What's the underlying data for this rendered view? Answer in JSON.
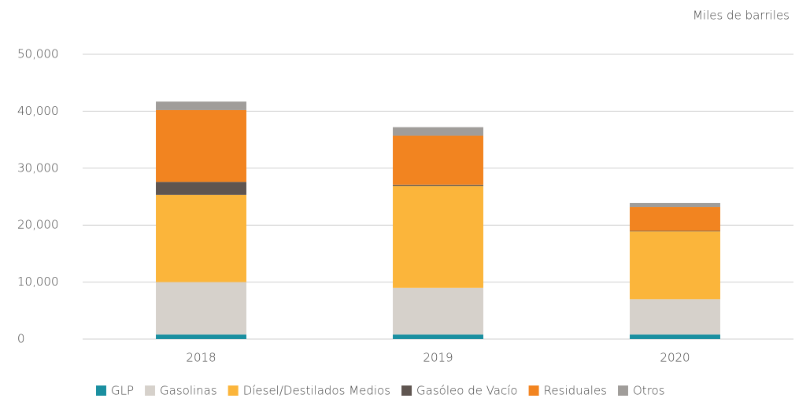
{
  "chart_data": {
    "type": "stacked_bar",
    "unit_label": "Miles de barriles",
    "categories": [
      "2018",
      "2019",
      "2020"
    ],
    "series": [
      {
        "name": "GLP",
        "color": "#1a8fa0",
        "values": [
          800,
          800,
          800
        ]
      },
      {
        "name": "Gasolinas",
        "color": "#d6d1cb",
        "values": [
          9200,
          8200,
          6200
        ]
      },
      {
        "name": "Díesel/Destilados Medios",
        "color": "#fbb53b",
        "values": [
          15300,
          17900,
          11900
        ]
      },
      {
        "name": "Gasóleo de Vacío",
        "color": "#5f5550",
        "values": [
          2300,
          200,
          100
        ]
      },
      {
        "name": "Residuales",
        "color": "#f28420",
        "values": [
          12600,
          8600,
          4200
        ]
      },
      {
        "name": "Otros",
        "color": "#a09d9a",
        "values": [
          1500,
          1500,
          700
        ]
      }
    ],
    "ylim": [
      0,
      50000
    ],
    "yticks": [
      0,
      {
        "value": 10000,
        "label": "10,000"
      },
      {
        "value": 20000,
        "label": "20,000"
      },
      {
        "value": 30000,
        "label": "30,000"
      },
      {
        "value": 40000,
        "label": "40,000"
      },
      {
        "value": 50000,
        "label": "50,000"
      }
    ],
    "grid": true,
    "legend": "bottom"
  }
}
